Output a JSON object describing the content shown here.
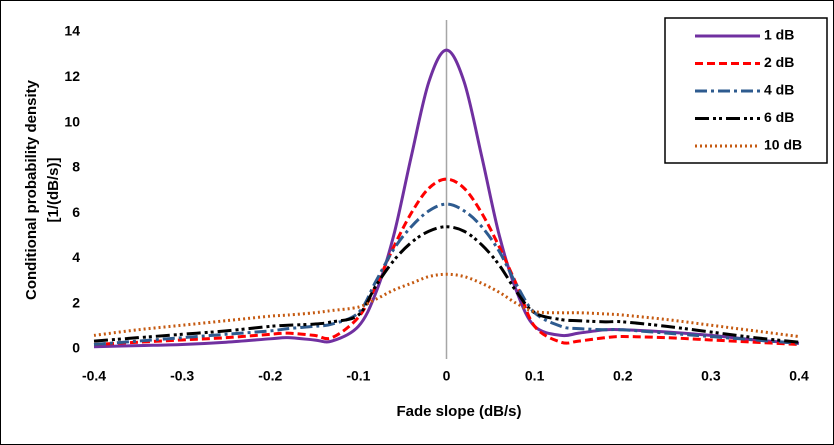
{
  "chart_data": {
    "type": "line",
    "xlabel": "Fade slope (dB/s)",
    "ylabel": [
      "Conditional probability density",
      "[1/(dB/s)]"
    ],
    "x": [
      -0.4,
      -0.35,
      -0.3,
      -0.25,
      -0.2,
      -0.18,
      -0.15,
      -0.13,
      -0.1,
      -0.08,
      -0.06,
      -0.04,
      -0.02,
      0,
      0.02,
      0.04,
      0.06,
      0.08,
      0.1,
      0.13,
      0.15,
      0.18,
      0.2,
      0.25,
      0.3,
      0.35,
      0.4
    ],
    "series": [
      {
        "name": "1 dB",
        "color": "#7030a0",
        "dash": "solid",
        "values": [
          0.1,
          0.15,
          0.2,
          0.3,
          0.45,
          0.5,
          0.4,
          0.35,
          1.0,
          2.5,
          5,
          8.5,
          11.8,
          13.2,
          11.8,
          8.5,
          5,
          2.5,
          1.0,
          0.6,
          0.7,
          0.85,
          0.85,
          0.75,
          0.6,
          0.4,
          0.25
        ]
      },
      {
        "name": "2 dB",
        "color": "#ff0000",
        "dash": "dash",
        "values": [
          0.2,
          0.3,
          0.4,
          0.5,
          0.65,
          0.7,
          0.6,
          0.5,
          1.4,
          2.8,
          4.5,
          6,
          7.1,
          7.5,
          7.1,
          6,
          4.5,
          2.8,
          1.0,
          0.3,
          0.35,
          0.5,
          0.55,
          0.5,
          0.4,
          0.3,
          0.2
        ]
      },
      {
        "name": "4 dB",
        "color": "#2e5b8f",
        "dash": "dashdot",
        "values": [
          0.2,
          0.35,
          0.5,
          0.65,
          0.8,
          0.9,
          1.0,
          1.1,
          1.6,
          3.0,
          4.4,
          5.4,
          6.1,
          6.4,
          6.1,
          5.4,
          4.3,
          2.8,
          1.6,
          1.0,
          0.9,
          0.85,
          0.85,
          0.7,
          0.55,
          0.4,
          0.25
        ]
      },
      {
        "name": "6 dB",
        "color": "#000000",
        "dash": "dashdotdot",
        "values": [
          0.35,
          0.5,
          0.65,
          0.8,
          1.0,
          1.05,
          1.1,
          1.2,
          1.5,
          2.8,
          3.9,
          4.7,
          5.2,
          5.4,
          5.2,
          4.6,
          3.7,
          2.5,
          1.6,
          1.3,
          1.25,
          1.2,
          1.2,
          1.0,
          0.75,
          0.5,
          0.3
        ]
      },
      {
        "name": "10 dB",
        "color": "#c55a11",
        "dash": "dot",
        "values": [
          0.6,
          0.85,
          1.05,
          1.25,
          1.45,
          1.5,
          1.6,
          1.7,
          1.85,
          2.2,
          2.6,
          2.9,
          3.2,
          3.3,
          3.2,
          2.9,
          2.5,
          2.0,
          1.65,
          1.6,
          1.6,
          1.55,
          1.5,
          1.3,
          1.05,
          0.8,
          0.55
        ]
      }
    ],
    "xlim": [
      -0.4,
      0.4
    ],
    "xticks": [
      -0.4,
      -0.3,
      -0.2,
      -0.1,
      0,
      0.1,
      0.2,
      0.3,
      0.4
    ],
    "ylim": [
      0,
      14
    ],
    "yticks": [
      0,
      2,
      4,
      6,
      8,
      10,
      12,
      14
    ],
    "grid": false,
    "legend": "upper right"
  }
}
